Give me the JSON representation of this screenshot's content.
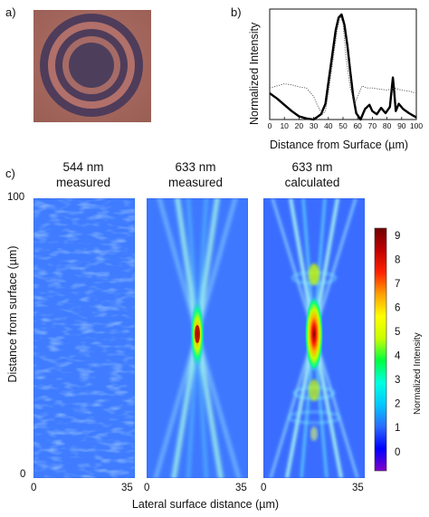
{
  "panel_a": {
    "label": "a)"
  },
  "panel_b": {
    "label": "b)"
  },
  "panel_c": {
    "label": "c)"
  },
  "chart_data": [
    {
      "type": "line",
      "title": "",
      "xlabel": "Distance from Surface (µm)",
      "ylabel": "Normalized Intensity",
      "xlim": [
        0,
        100
      ],
      "x_ticks": [
        "0",
        "10",
        "20",
        "30",
        "40",
        "50",
        "60",
        "70",
        "80",
        "90",
        "100"
      ],
      "grid": false,
      "series": [
        {
          "style": "thick-solid",
          "x": [
            0,
            5,
            10,
            15,
            20,
            25,
            30,
            35,
            38,
            40,
            43,
            45,
            47,
            49,
            51,
            53,
            55,
            57,
            59,
            62,
            65,
            68,
            70,
            73,
            76,
            79,
            82,
            84,
            85,
            86,
            88,
            91,
            95,
            100
          ],
          "y": [
            0.25,
            0.2,
            0.14,
            0.08,
            0.03,
            0.01,
            0.0,
            0.05,
            0.15,
            0.35,
            0.65,
            0.85,
            0.97,
            1.0,
            0.9,
            0.7,
            0.45,
            0.22,
            0.06,
            0.0,
            0.1,
            0.14,
            0.08,
            0.05,
            0.11,
            0.06,
            0.12,
            0.4,
            0.25,
            0.08,
            0.15,
            0.1,
            0.06,
            0.02
          ]
        },
        {
          "style": "thin-dotted",
          "x": [
            0,
            5,
            10,
            15,
            20,
            25,
            30,
            33,
            36,
            38,
            40,
            43,
            46,
            48,
            50,
            52,
            55,
            58,
            61,
            63,
            66,
            70,
            75,
            80,
            85,
            90,
            95,
            100
          ],
          "y": [
            0.3,
            0.32,
            0.34,
            0.33,
            0.31,
            0.3,
            0.22,
            0.12,
            0.05,
            0.08,
            0.25,
            0.55,
            0.85,
            0.98,
            0.92,
            0.6,
            0.3,
            0.15,
            0.25,
            0.32,
            0.3,
            0.3,
            0.29,
            0.28,
            0.3,
            0.28,
            0.27,
            0.25
          ]
        }
      ]
    },
    {
      "type": "heatmap",
      "titles": [
        "544 nm\nmeasured",
        "633 nm\nmeasured",
        "633 nm\ncalculated"
      ],
      "xlabel": "Lateral surface distance (µm)",
      "ylabel": "Distance from surface (µm)",
      "x_ticks": [
        "0",
        "35"
      ],
      "y_ticks": [
        "100",
        "0"
      ],
      "colorbar": {
        "label": "Normalized Intensity",
        "ticks": [
          "9",
          "8",
          "7",
          "6",
          "5",
          "4",
          "3",
          "2",
          "1",
          "0"
        ],
        "range": [
          -0.8,
          9.3
        ],
        "colors": [
          "#8000c8",
          "#0000ff",
          "#2a6bff",
          "#00c8ff",
          "#00ffe0",
          "#00ff40",
          "#c8ff00",
          "#ffff00",
          "#ffa000",
          "#ff2000",
          "#c00000",
          "#700000"
        ]
      }
    }
  ],
  "texts": {
    "b_ylabel": "Normalized Intensity",
    "b_xlabel": "Distance from Surface (µm)",
    "t1a": "544 nm",
    "t1b": "measured",
    "t2a": "633 nm",
    "t2b": "measured",
    "t3a": "633 nm",
    "t3b": "calculated",
    "c_ylabel": "Distance from surface (µm)",
    "c_xlabel": "Lateral surface distance (µm)",
    "c_y100": "100",
    "c_y0": "0",
    "p1_x0": "0",
    "p1_x35": "35",
    "p2_x0": "0",
    "p2_x35": "35",
    "p3_x0": "0",
    "p3_x35": "35",
    "cbar_label": "Normalized Intensity"
  }
}
